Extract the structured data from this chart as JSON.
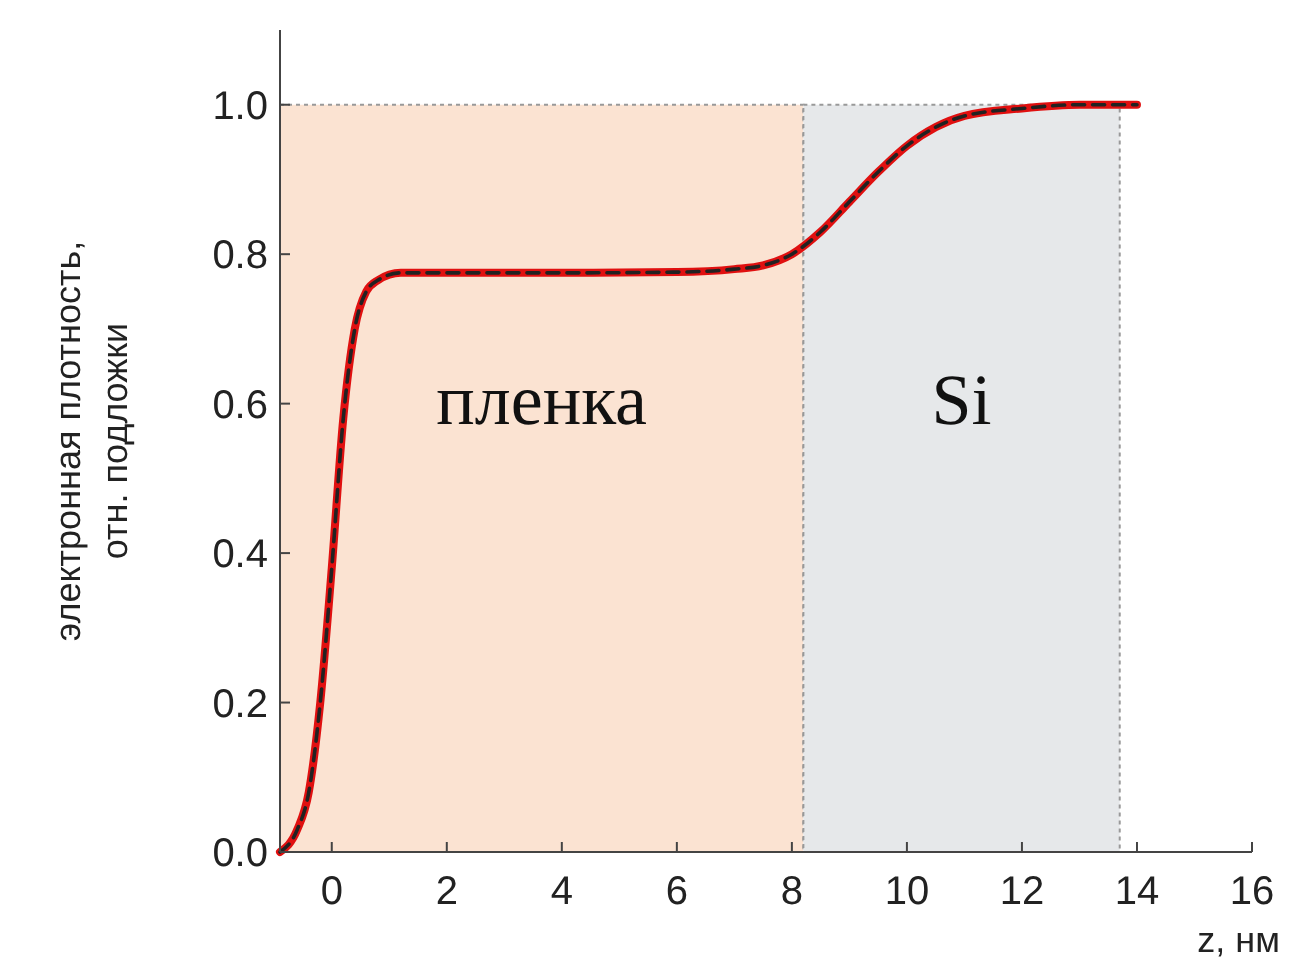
{
  "chart_data": {
    "type": "line",
    "xlabel": "z, нм",
    "ylabel": "электронная плотность,\nотн. подложки",
    "xlim": [
      -0.9,
      16
    ],
    "ylim": [
      0,
      1.1
    ],
    "xticks": [
      0,
      2,
      4,
      6,
      8,
      10,
      12,
      14,
      16
    ],
    "yticks": [
      {
        "value": 0,
        "label": "0.0"
      },
      {
        "value": 0.2,
        "label": "0.2"
      },
      {
        "value": 0.4,
        "label": "0.4"
      },
      {
        "value": 0.6,
        "label": "0.6"
      },
      {
        "value": 0.8,
        "label": "0.8"
      },
      {
        "value": 1,
        "label": "1.0"
      }
    ],
    "grid": false,
    "x": [
      -0.9,
      -0.6,
      -0.4,
      -0.2,
      0,
      0.2,
      0.4,
      0.6,
      0.8,
      1.2,
      2,
      4,
      6,
      7,
      7.5,
      8,
      8.5,
      9,
      9.5,
      10,
      10.5,
      11,
      12,
      13,
      14
    ],
    "series": [
      {
        "color": "#e01010",
        "line_style": "solid",
        "values": [
          0,
          0.03,
          0.08,
          0.2,
          0.38,
          0.58,
          0.7,
          0.75,
          0.765,
          0.775,
          0.775,
          0.775,
          0.776,
          0.78,
          0.785,
          0.8,
          0.83,
          0.87,
          0.91,
          0.945,
          0.97,
          0.985,
          0.995,
          1,
          1
        ]
      },
      {
        "color": "#222222",
        "line_style": "dashed",
        "values": [
          0,
          0.03,
          0.08,
          0.2,
          0.38,
          0.58,
          0.7,
          0.75,
          0.765,
          0.775,
          0.775,
          0.775,
          0.776,
          0.78,
          0.785,
          0.8,
          0.83,
          0.87,
          0.91,
          0.945,
          0.97,
          0.985,
          0.995,
          1,
          1
        ]
      }
    ],
    "bands": [
      {
        "axis": "x",
        "from": -0.9,
        "to": 8.2,
        "label": "пленка",
        "color": "#fbe3d2"
      },
      {
        "axis": "x",
        "from": 8.2,
        "to": 13.7,
        "label": "Si",
        "color": "#e6e8ea"
      }
    ]
  }
}
